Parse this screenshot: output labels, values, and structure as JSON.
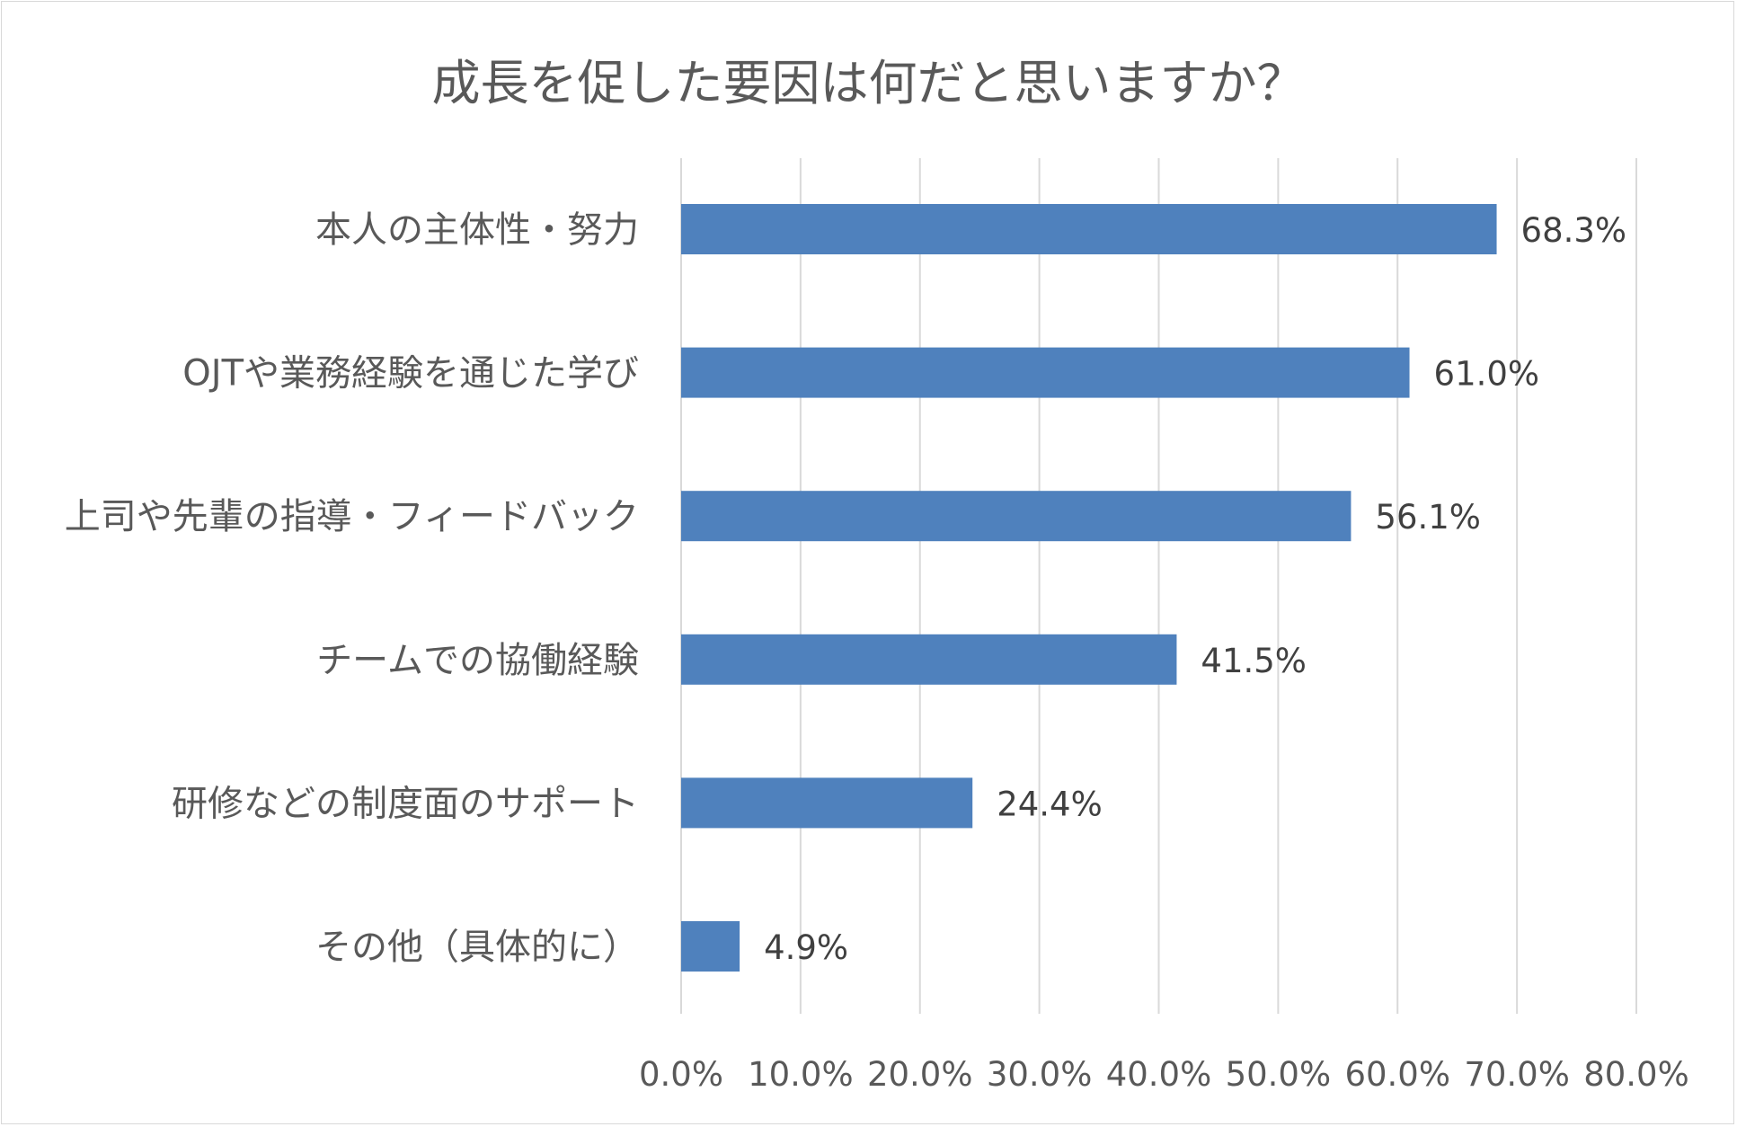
{
  "chart_data": {
    "type": "bar",
    "orientation": "horizontal",
    "title": "成長を促した要因は何だと思いますか？",
    "categories": [
      "本人の主体性・努力",
      "OJTや業務経験を通じた学び",
      "上司や先輩の指導・フィードバック",
      "チームでの協働経験",
      "研修などの制度面のサポート",
      "その他（具体的に）"
    ],
    "values": [
      68.3,
      61.0,
      56.1,
      41.5,
      24.4,
      4.9
    ],
    "data_labels": [
      "68.3%",
      "61.0%",
      "56.1%",
      "41.5%",
      "24.4%",
      "4.9%"
    ],
    "xlim": [
      0,
      80
    ],
    "xticks": [
      0,
      10,
      20,
      30,
      40,
      50,
      60,
      70,
      80
    ],
    "xtick_labels": [
      "0.0%",
      "10.0%",
      "20.0%",
      "30.0%",
      "40.0%",
      "50.0%",
      "60.0%",
      "70.0%",
      "80.0%"
    ],
    "grid": true,
    "xlabel": "",
    "ylabel": "",
    "bar_color": "#4f81bd",
    "grid_color": "#d9d9d9"
  }
}
